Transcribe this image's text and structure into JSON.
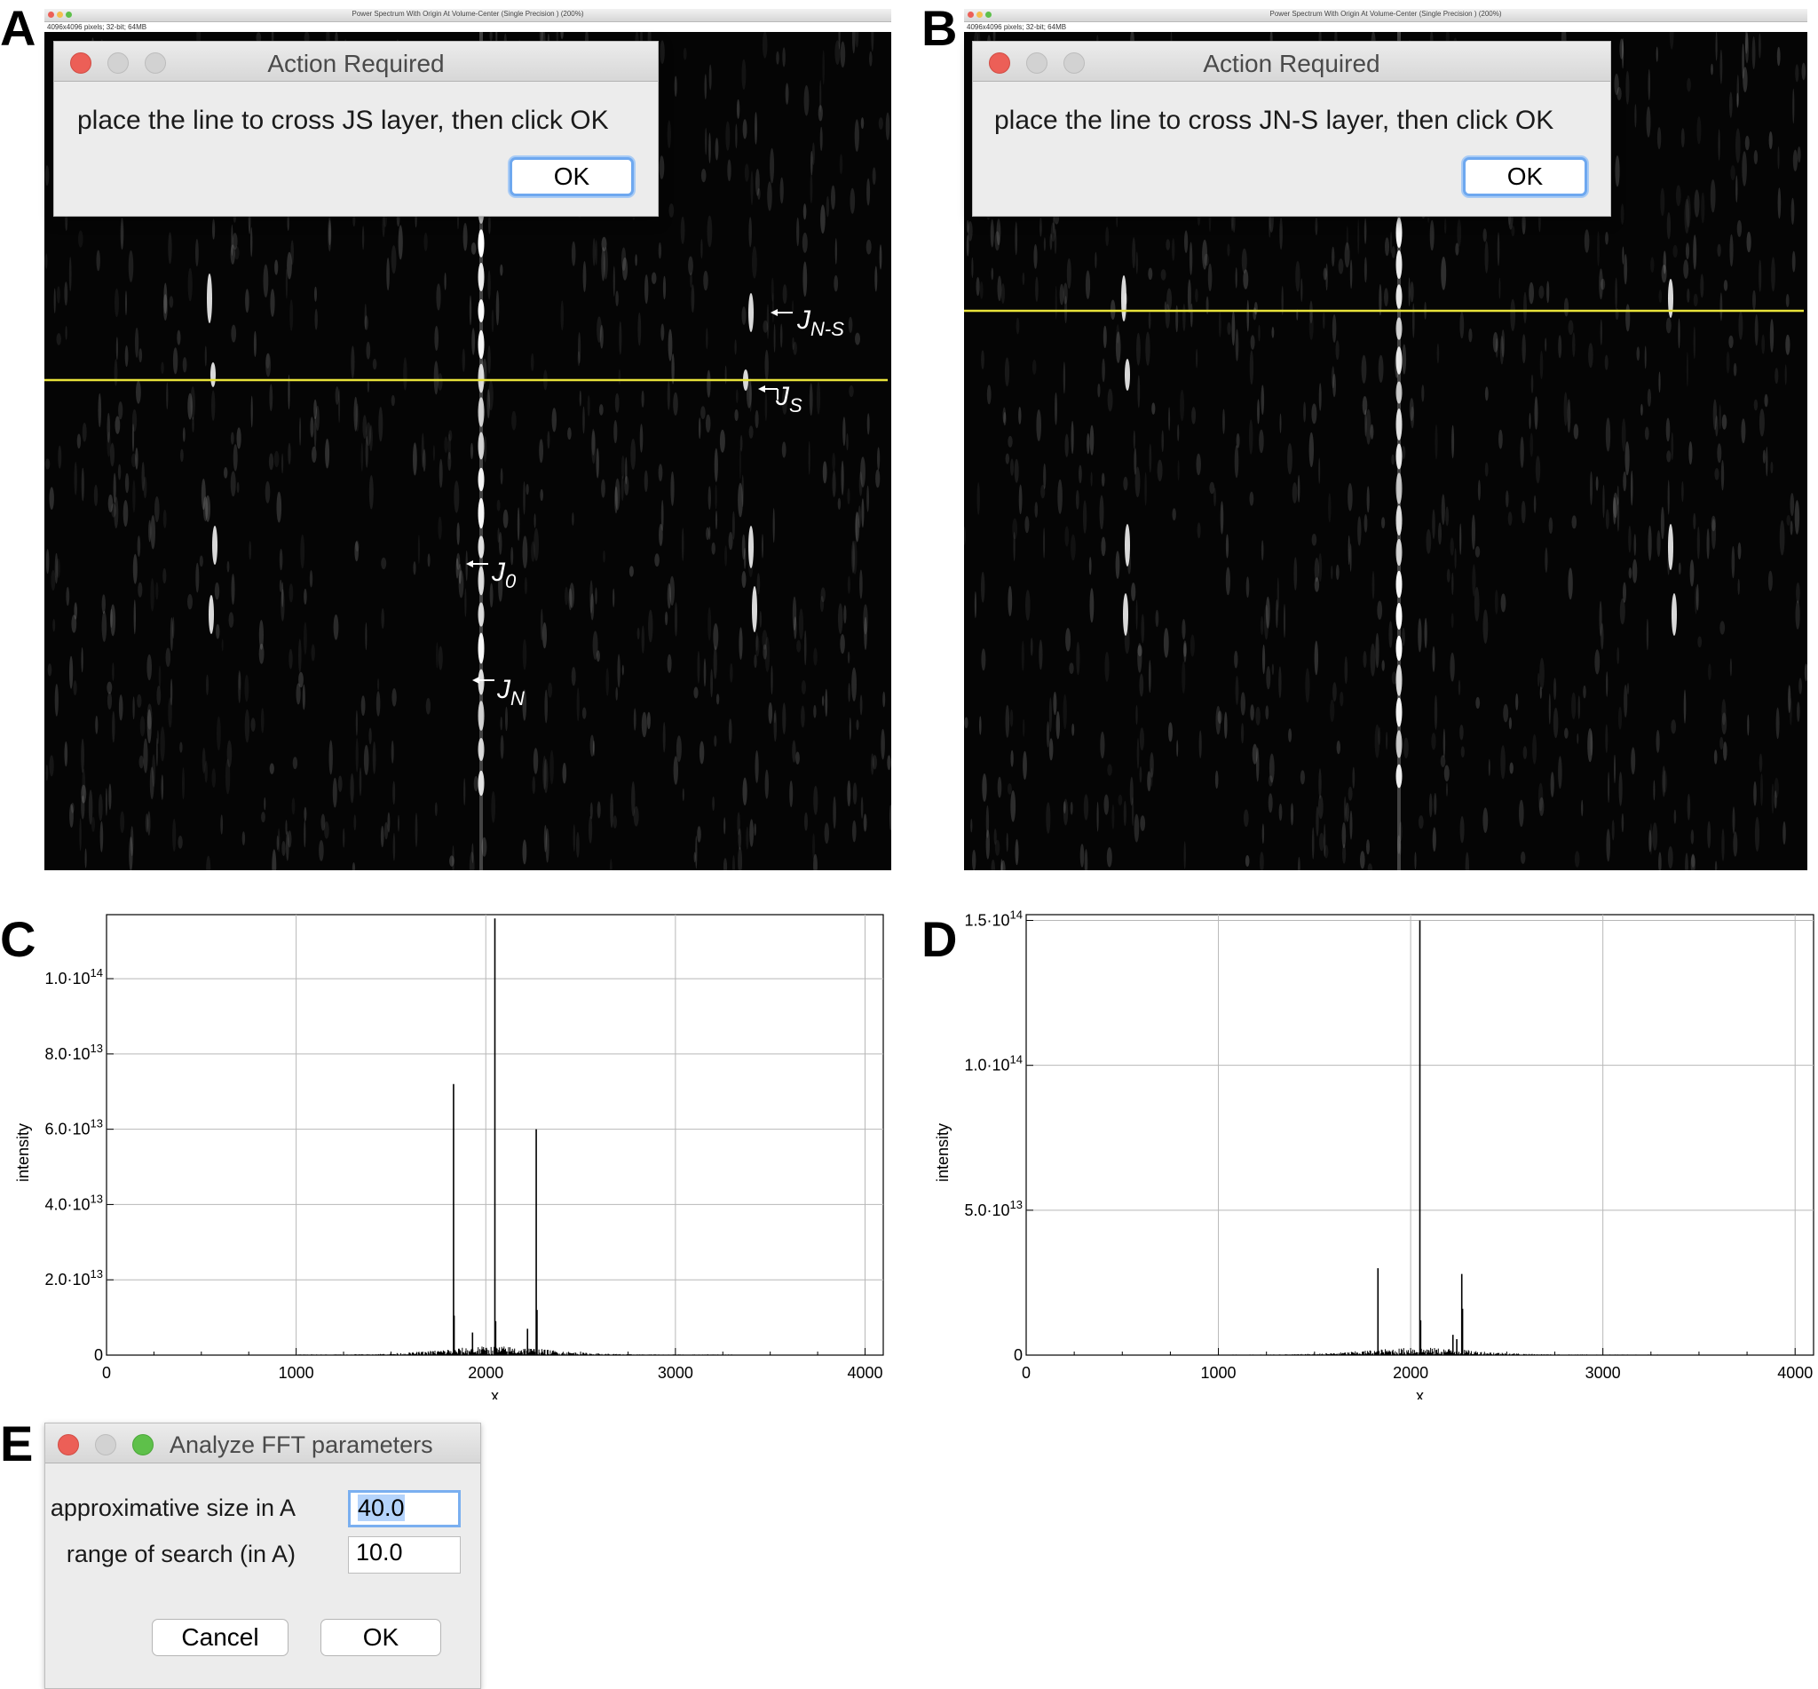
{
  "panels": {
    "a": "A",
    "b": "B",
    "c": "C",
    "d": "D",
    "e": "E"
  },
  "image_windows": [
    {
      "title": "Power Spectrum With Origin At Volume-Center (Single Precision ) (200%)",
      "info": "4096x4096 pixels; 32-bit; 64MB",
      "dialog": {
        "title": "Action Required",
        "message": "place the line to cross JS layer, then click OK",
        "ok": "OK"
      },
      "annotations": {
        "jns": {
          "main": "J",
          "sub": "N-S"
        },
        "js": {
          "main": "J",
          "sub": "S"
        },
        "j0": {
          "main": "J",
          "sub": "0"
        },
        "jn": {
          "main": "J",
          "sub": "N"
        }
      }
    },
    {
      "title": "Power Spectrum With Origin At Volume-Center (Single Precision ) (200%)",
      "info": "4096x4096 pixels; 32-bit; 64MB",
      "dialog": {
        "title": "Action Required",
        "message": "place the line to cross JN-S layer, then click OK",
        "ok": "OK"
      }
    }
  ],
  "colors": {
    "selection_line": "#e8e33a",
    "default_button_ring": "#6ea8ef",
    "close_light": "#ec5f57",
    "zoom_light": "#5ec04a"
  },
  "chart_data": [
    {
      "type": "line",
      "panel": "C",
      "xlabel": "x",
      "ylabel": "intensity",
      "xlim": [
        0,
        4096
      ],
      "ylim": [
        0,
        117000000000000.0
      ],
      "x_ticks": [
        {
          "v": 0,
          "label": "0"
        },
        {
          "v": 1000,
          "label": "1000"
        },
        {
          "v": 2000,
          "label": "2000"
        },
        {
          "v": 3000,
          "label": "3000"
        },
        {
          "v": 4000,
          "label": "4000"
        }
      ],
      "y_ticks": [
        {
          "v": 0,
          "label": "0",
          "exp": ""
        },
        {
          "v": 20000000000000.0,
          "label": "2.0·10",
          "exp": "13"
        },
        {
          "v": 40000000000000.0,
          "label": "4.0·10",
          "exp": "13"
        },
        {
          "v": 60000000000000.0,
          "label": "6.0·10",
          "exp": "13"
        },
        {
          "v": 80000000000000.0,
          "label": "8.0·10",
          "exp": "13"
        },
        {
          "v": 100000000000000.0,
          "label": "1.0·10",
          "exp": "14"
        }
      ],
      "grid": true,
      "peaks": [
        {
          "x": 1830,
          "y": 72000000000000.0
        },
        {
          "x": 2048,
          "y": 116000000000000.0
        },
        {
          "x": 2266,
          "y": 60000000000000.0
        },
        {
          "x": 1833,
          "y": 10500000000000.0
        },
        {
          "x": 2052,
          "y": 9000000000000.0
        },
        {
          "x": 1930,
          "y": 6000000000000.0
        },
        {
          "x": 2220,
          "y": 7000000000000.0
        },
        {
          "x": 2270,
          "y": 12000000000000.0
        }
      ],
      "noise_range": [
        1000,
        3300
      ],
      "noise_peak": 2200000000000.0
    },
    {
      "type": "line",
      "panel": "D",
      "xlabel": "x",
      "ylabel": "intensity",
      "xlim": [
        0,
        4096
      ],
      "ylim": [
        0,
        152000000000000.0
      ],
      "x_ticks": [
        {
          "v": 0,
          "label": "0"
        },
        {
          "v": 1000,
          "label": "1000"
        },
        {
          "v": 2000,
          "label": "2000"
        },
        {
          "v": 3000,
          "label": "3000"
        },
        {
          "v": 4000,
          "label": "4000"
        }
      ],
      "y_ticks": [
        {
          "v": 0,
          "label": "0",
          "exp": ""
        },
        {
          "v": 50000000000000.0,
          "label": "5.0·10",
          "exp": "13"
        },
        {
          "v": 100000000000000.0,
          "label": "1.0·10",
          "exp": "14"
        },
        {
          "v": 150000000000000.0,
          "label": "1.5·10",
          "exp": "14"
        }
      ],
      "grid": true,
      "peaks": [
        {
          "x": 1830,
          "y": 30000000000000.0
        },
        {
          "x": 2048,
          "y": 150000000000000.0
        },
        {
          "x": 2266,
          "y": 28000000000000.0
        },
        {
          "x": 2270,
          "y": 16000000000000.0
        },
        {
          "x": 2052,
          "y": 12000000000000.0
        },
        {
          "x": 2220,
          "y": 7000000000000.0
        },
        {
          "x": 2240,
          "y": 5500000000000.0
        }
      ],
      "noise_range": [
        1000,
        3300
      ],
      "noise_peak": 2400000000000.0
    }
  ],
  "analyze_dialog": {
    "title": "Analyze FFT parameters",
    "size_label": "approximative size in A",
    "size_value": "40.0",
    "range_label": "range of search (in A)",
    "range_value": "10.0",
    "cancel": "Cancel",
    "ok": "OK"
  }
}
